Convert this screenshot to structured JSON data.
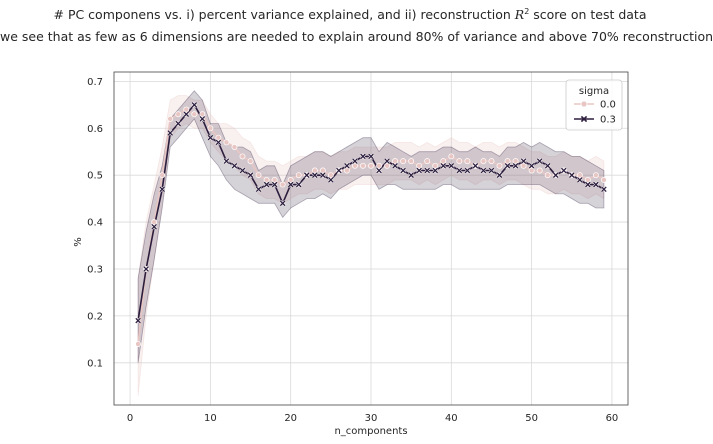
{
  "chart_data": {
    "type": "line",
    "title_prefix": "# PC componens vs. i) percent variance explained, and ii) reconstruction ",
    "title_math_base": "R",
    "title_math_sup": "2",
    "title_suffix": " score on test data",
    "subtitle": "we see that as few as 6 dimensions are needed to explain around 80% of variance and above 70% reconstruction",
    "xlabel": "n_components",
    "ylabel": "%",
    "xlim": [
      -2,
      62
    ],
    "ylim": [
      0.01,
      0.72
    ],
    "xticks": [
      0,
      10,
      20,
      30,
      40,
      50,
      60
    ],
    "yticks": [
      0.1,
      0.2,
      0.3,
      0.4,
      0.5,
      0.6,
      0.7
    ],
    "grid": true,
    "legend": {
      "title": "sigma",
      "placement": "top-right"
    },
    "x": [
      1,
      2,
      3,
      4,
      5,
      6,
      7,
      8,
      9,
      10,
      11,
      12,
      13,
      14,
      15,
      16,
      17,
      18,
      19,
      20,
      21,
      22,
      23,
      24,
      25,
      26,
      27,
      28,
      29,
      30,
      31,
      32,
      33,
      34,
      35,
      36,
      37,
      38,
      39,
      40,
      41,
      42,
      43,
      44,
      45,
      46,
      47,
      48,
      49,
      50,
      51,
      52,
      53,
      54,
      55,
      56,
      57,
      58,
      59
    ],
    "series": [
      {
        "name": "0.0",
        "color": "#e8c6c3",
        "marker": "circle",
        "values": [
          0.14,
          0.3,
          0.4,
          0.5,
          0.62,
          0.63,
          0.64,
          0.63,
          0.63,
          0.6,
          0.58,
          0.57,
          0.56,
          0.54,
          0.53,
          0.5,
          0.49,
          0.49,
          0.48,
          0.49,
          0.5,
          0.5,
          0.51,
          0.51,
          0.5,
          0.51,
          0.51,
          0.52,
          0.52,
          0.52,
          0.52,
          0.52,
          0.53,
          0.53,
          0.53,
          0.52,
          0.53,
          0.52,
          0.53,
          0.54,
          0.53,
          0.53,
          0.52,
          0.53,
          0.53,
          0.52,
          0.53,
          0.53,
          0.52,
          0.51,
          0.51,
          0.5,
          0.5,
          0.51,
          0.5,
          0.5,
          0.49,
          0.5,
          0.49
        ],
        "band_lower": [
          0.03,
          0.2,
          0.32,
          0.44,
          0.58,
          0.6,
          0.61,
          0.6,
          0.6,
          0.57,
          0.55,
          0.53,
          0.52,
          0.5,
          0.49,
          0.46,
          0.45,
          0.45,
          0.44,
          0.45,
          0.46,
          0.46,
          0.47,
          0.47,
          0.46,
          0.47,
          0.47,
          0.48,
          0.48,
          0.48,
          0.48,
          0.48,
          0.49,
          0.49,
          0.49,
          0.48,
          0.49,
          0.48,
          0.49,
          0.5,
          0.49,
          0.49,
          0.48,
          0.49,
          0.49,
          0.48,
          0.49,
          0.49,
          0.48,
          0.47,
          0.47,
          0.46,
          0.46,
          0.47,
          0.46,
          0.46,
          0.45,
          0.46,
          0.45
        ],
        "band_upper": [
          0.28,
          0.4,
          0.48,
          0.56,
          0.66,
          0.67,
          0.67,
          0.66,
          0.66,
          0.63,
          0.61,
          0.61,
          0.6,
          0.58,
          0.57,
          0.54,
          0.53,
          0.53,
          0.52,
          0.53,
          0.54,
          0.54,
          0.55,
          0.55,
          0.54,
          0.55,
          0.55,
          0.56,
          0.56,
          0.56,
          0.56,
          0.56,
          0.57,
          0.57,
          0.57,
          0.56,
          0.57,
          0.56,
          0.57,
          0.58,
          0.57,
          0.57,
          0.56,
          0.57,
          0.57,
          0.56,
          0.57,
          0.57,
          0.56,
          0.55,
          0.55,
          0.54,
          0.54,
          0.55,
          0.54,
          0.54,
          0.53,
          0.54,
          0.53
        ]
      },
      {
        "name": "0.3",
        "color": "#2d1e3e",
        "marker": "x",
        "values": [
          0.19,
          0.3,
          0.39,
          0.47,
          0.59,
          0.61,
          0.63,
          0.65,
          0.62,
          0.58,
          0.57,
          0.53,
          0.52,
          0.51,
          0.5,
          0.47,
          0.48,
          0.48,
          0.44,
          0.48,
          0.48,
          0.5,
          0.5,
          0.5,
          0.49,
          0.51,
          0.52,
          0.53,
          0.54,
          0.54,
          0.51,
          0.53,
          0.52,
          0.51,
          0.5,
          0.51,
          0.51,
          0.51,
          0.52,
          0.52,
          0.51,
          0.51,
          0.52,
          0.51,
          0.51,
          0.5,
          0.52,
          0.52,
          0.53,
          0.52,
          0.53,
          0.52,
          0.5,
          0.51,
          0.5,
          0.49,
          0.48,
          0.48,
          0.47
        ],
        "band_lower": [
          0.1,
          0.22,
          0.32,
          0.43,
          0.56,
          0.58,
          0.6,
          0.62,
          0.58,
          0.54,
          0.52,
          0.49,
          0.47,
          0.46,
          0.45,
          0.44,
          0.44,
          0.44,
          0.41,
          0.43,
          0.44,
          0.45,
          0.45,
          0.46,
          0.45,
          0.47,
          0.48,
          0.49,
          0.5,
          0.5,
          0.47,
          0.48,
          0.48,
          0.47,
          0.47,
          0.47,
          0.47,
          0.47,
          0.48,
          0.48,
          0.47,
          0.47,
          0.47,
          0.47,
          0.47,
          0.47,
          0.48,
          0.48,
          0.48,
          0.48,
          0.48,
          0.47,
          0.46,
          0.46,
          0.45,
          0.44,
          0.44,
          0.43,
          0.43
        ],
        "band_upper": [
          0.28,
          0.38,
          0.46,
          0.52,
          0.62,
          0.64,
          0.66,
          0.68,
          0.66,
          0.61,
          0.61,
          0.57,
          0.56,
          0.56,
          0.55,
          0.51,
          0.52,
          0.52,
          0.48,
          0.52,
          0.53,
          0.54,
          0.55,
          0.55,
          0.54,
          0.55,
          0.56,
          0.57,
          0.58,
          0.58,
          0.55,
          0.57,
          0.56,
          0.55,
          0.54,
          0.55,
          0.55,
          0.55,
          0.56,
          0.56,
          0.55,
          0.55,
          0.56,
          0.55,
          0.55,
          0.54,
          0.56,
          0.56,
          0.57,
          0.56,
          0.57,
          0.56,
          0.55,
          0.55,
          0.54,
          0.54,
          0.53,
          0.52,
          0.51
        ]
      }
    ]
  }
}
